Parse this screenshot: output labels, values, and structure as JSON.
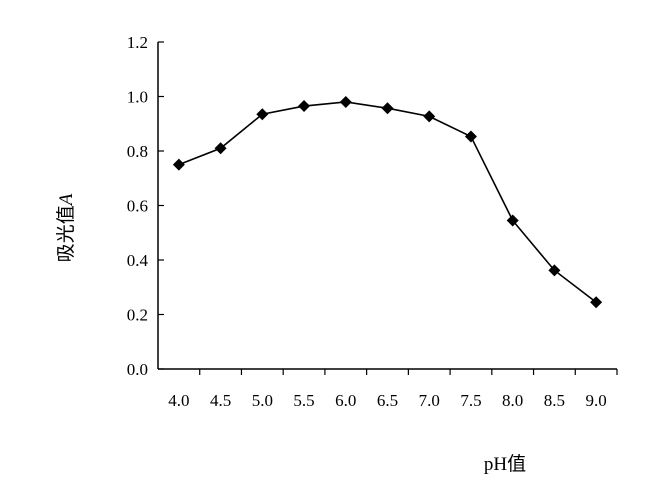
{
  "chart_data": {
    "type": "line",
    "x_categories": [
      "4.0",
      "4.5",
      "5.0",
      "5.5",
      "6.0",
      "6.5",
      "7.0",
      "7.5",
      "8.0",
      "8.5",
      "9.0"
    ],
    "series": [
      {
        "values": [
          0.75,
          0.81,
          0.935,
          0.965,
          0.98,
          0.957,
          0.927,
          0.853,
          0.545,
          0.362,
          0.245
        ],
        "marker": "diamond",
        "color": "#000000"
      }
    ],
    "xlabel": "pH值",
    "ylabel": "吸光值A",
    "ylabel_prefix": "吸光值",
    "ylabel_italic": "A",
    "ylim": [
      0,
      1.2
    ],
    "yticks": [
      0.0,
      0.2,
      0.4,
      0.6,
      0.8,
      1.0,
      1.2
    ],
    "ytick_labels": [
      "0.0",
      "0.2",
      "0.4",
      "0.6",
      "0.8",
      "1.0",
      "1.2"
    ],
    "grid": false,
    "legend": "none"
  }
}
